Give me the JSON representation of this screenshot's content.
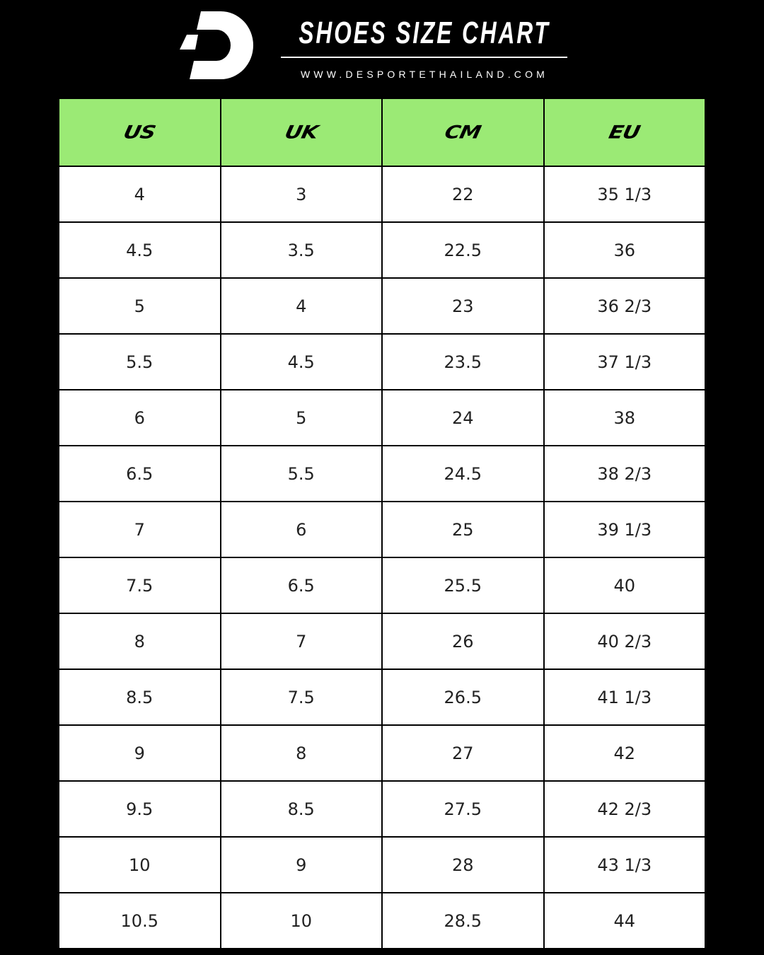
{
  "header": {
    "title": "SHOES SIZE CHART",
    "website": "WWW.DESPORTETHAILAND.COM",
    "logo_text": "D"
  },
  "colors": {
    "header_bg": "#9bea75",
    "background": "#000000",
    "cell_bg": "#ffffff"
  },
  "table": {
    "columns": [
      "US",
      "UK",
      "CM",
      "EU"
    ],
    "rows": [
      [
        "4",
        "3",
        "22",
        "35 1/3"
      ],
      [
        "4.5",
        "3.5",
        "22.5",
        "36"
      ],
      [
        "5",
        "4",
        "23",
        "36 2/3"
      ],
      [
        "5.5",
        "4.5",
        "23.5",
        "37 1/3"
      ],
      [
        "6",
        "5",
        "24",
        "38"
      ],
      [
        "6.5",
        "5.5",
        "24.5",
        "38 2/3"
      ],
      [
        "7",
        "6",
        "25",
        "39 1/3"
      ],
      [
        "7.5",
        "6.5",
        "25.5",
        "40"
      ],
      [
        "8",
        "7",
        "26",
        "40 2/3"
      ],
      [
        "8.5",
        "7.5",
        "26.5",
        "41 1/3"
      ],
      [
        "9",
        "8",
        "27",
        "42"
      ],
      [
        "9.5",
        "8.5",
        "27.5",
        "42 2/3"
      ],
      [
        "10",
        "9",
        "28",
        "43 1/3"
      ],
      [
        "10.5",
        "10",
        "28.5",
        "44"
      ]
    ]
  }
}
